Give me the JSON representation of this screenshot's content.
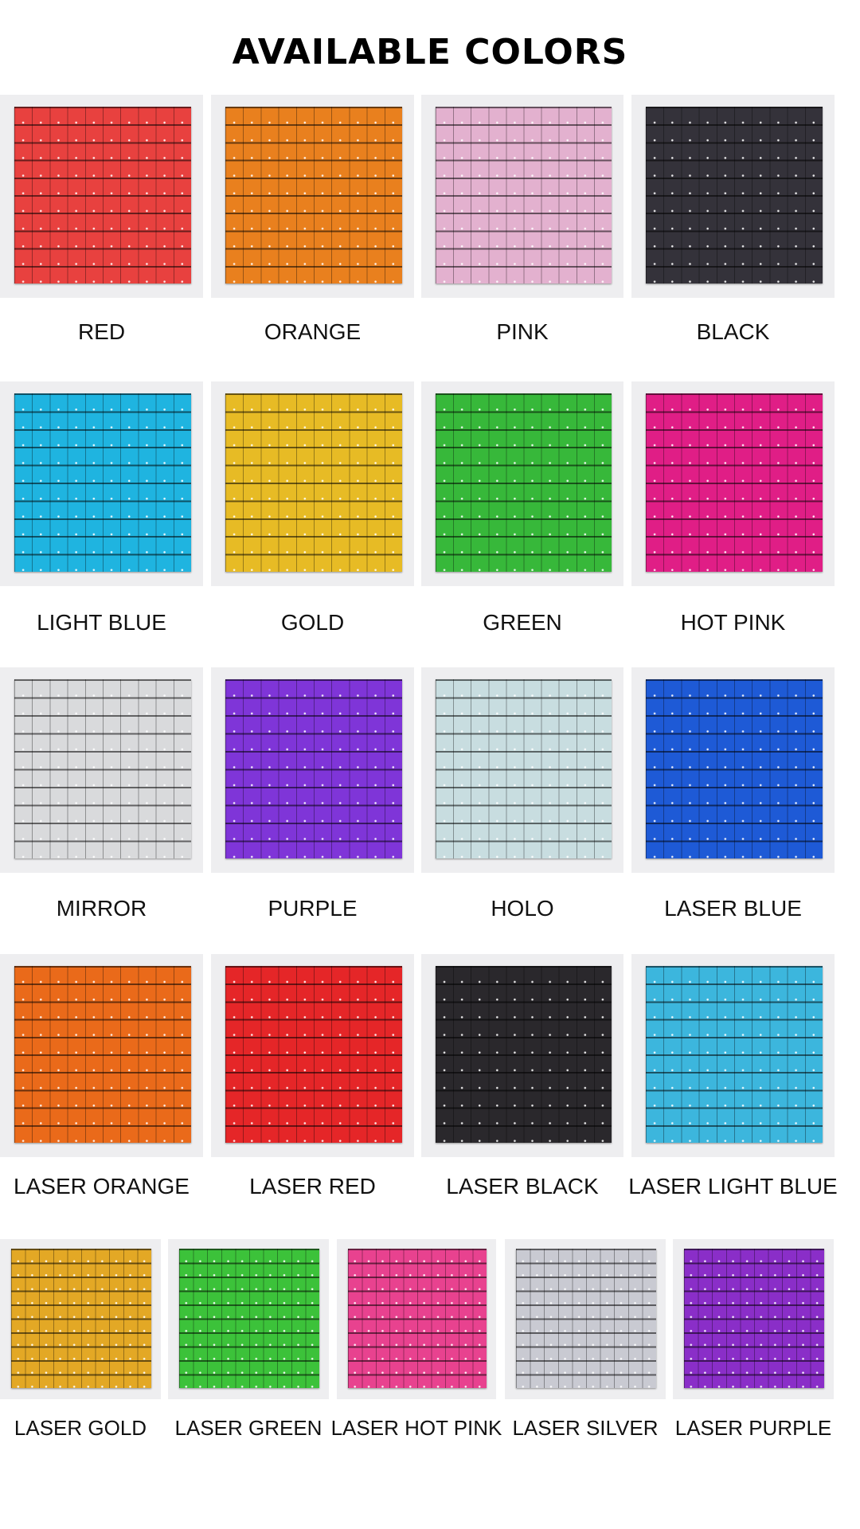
{
  "title": "AVAILABLE COLORS",
  "swatches": [
    {
      "label": "RED",
      "color": "#e8413f"
    },
    {
      "label": "ORANGE",
      "color": "#e9801e"
    },
    {
      "label": "PINK",
      "color": "#e3b1cf"
    },
    {
      "label": "BLACK",
      "color": "#34323a"
    },
    {
      "label": "LIGHT BLUE",
      "color": "#1fb4e0"
    },
    {
      "label": "GOLD",
      "color": "#e7bb25"
    },
    {
      "label": "GREEN",
      "color": "#37b83a"
    },
    {
      "label": "HOT PINK",
      "color": "#e01e86"
    },
    {
      "label": "MIRROR",
      "color": "#d9dadc"
    },
    {
      "label": "PURPLE",
      "color": "#7f35d8"
    },
    {
      "label": "HOLO",
      "color": "#c8dde0"
    },
    {
      "label": "LASER BLUE",
      "color": "#1e5ad6"
    },
    {
      "label": "LASER ORANGE",
      "color": "#ea6a1a"
    },
    {
      "label": "LASER RED",
      "color": "#e52628"
    },
    {
      "label": "LASER BLACK",
      "color": "#2a282c"
    },
    {
      "label": "LASER LIGHT BLUE",
      "color": "#3cb6dd"
    },
    {
      "label": "LASER GOLD",
      "color": "#e3a825"
    },
    {
      "label": "LASER GREEN",
      "color": "#3cc23a"
    },
    {
      "label": "LASER HOT PINK",
      "color": "#e8428f"
    },
    {
      "label": "LASER SILVER",
      "color": "#c9cad2"
    },
    {
      "label": "LASER PURPLE",
      "color": "#8a2ec8"
    }
  ]
}
